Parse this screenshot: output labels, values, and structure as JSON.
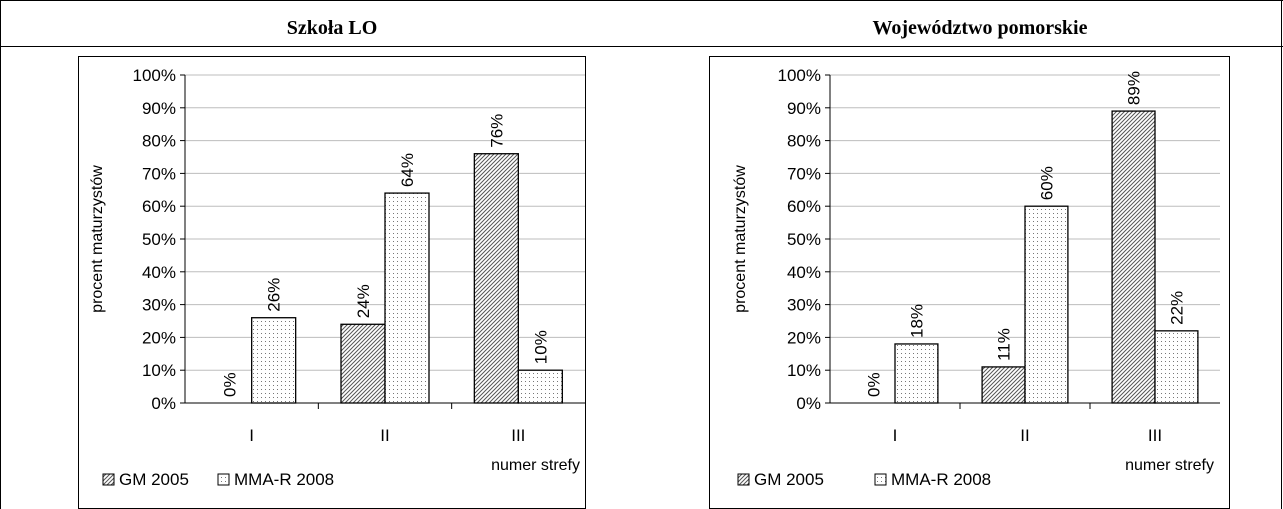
{
  "legend_position": "bottom",
  "series_styles": {
    "GM 2005": {
      "pattern": "diagonal-hatch",
      "color": "#000000"
    },
    "MMA-R 2008": {
      "pattern": "dots",
      "color": "#000000"
    }
  },
  "chart_data": [
    {
      "type": "bar",
      "title": "Szkoła LO",
      "ylabel": "procent maturzystów",
      "xlabel": "numer strefy",
      "categories": [
        "I",
        "II",
        "III"
      ],
      "series": [
        {
          "name": "GM 2005",
          "values": [
            0,
            24,
            76
          ],
          "labels": [
            "0%",
            "24%",
            "76%"
          ]
        },
        {
          "name": "MMA-R 2008",
          "values": [
            26,
            64,
            10
          ],
          "labels": [
            "26%",
            "64%",
            "10%"
          ]
        }
      ],
      "ylim": [
        0,
        100
      ],
      "yticks": [
        "0%",
        "10%",
        "20%",
        "30%",
        "40%",
        "50%",
        "60%",
        "70%",
        "80%",
        "90%",
        "100%"
      ],
      "grid": true,
      "legend": [
        "GM 2005",
        "MMA-R 2008"
      ]
    },
    {
      "type": "bar",
      "title": "Województwo pomorskie",
      "ylabel": "procent maturzystów",
      "xlabel": "numer strefy",
      "categories": [
        "I",
        "II",
        "III"
      ],
      "series": [
        {
          "name": "GM 2005",
          "values": [
            0,
            11,
            89
          ],
          "labels": [
            "0%",
            "11%",
            "89%"
          ]
        },
        {
          "name": "MMA-R 2008",
          "values": [
            18,
            60,
            22
          ],
          "labels": [
            "18%",
            "60%",
            "22%"
          ]
        }
      ],
      "ylim": [
        0,
        100
      ],
      "yticks": [
        "0%",
        "10%",
        "20%",
        "30%",
        "40%",
        "50%",
        "60%",
        "70%",
        "80%",
        "90%",
        "100%"
      ],
      "grid": true,
      "legend": [
        "GM 2005",
        "MMA-R 2008"
      ]
    }
  ]
}
